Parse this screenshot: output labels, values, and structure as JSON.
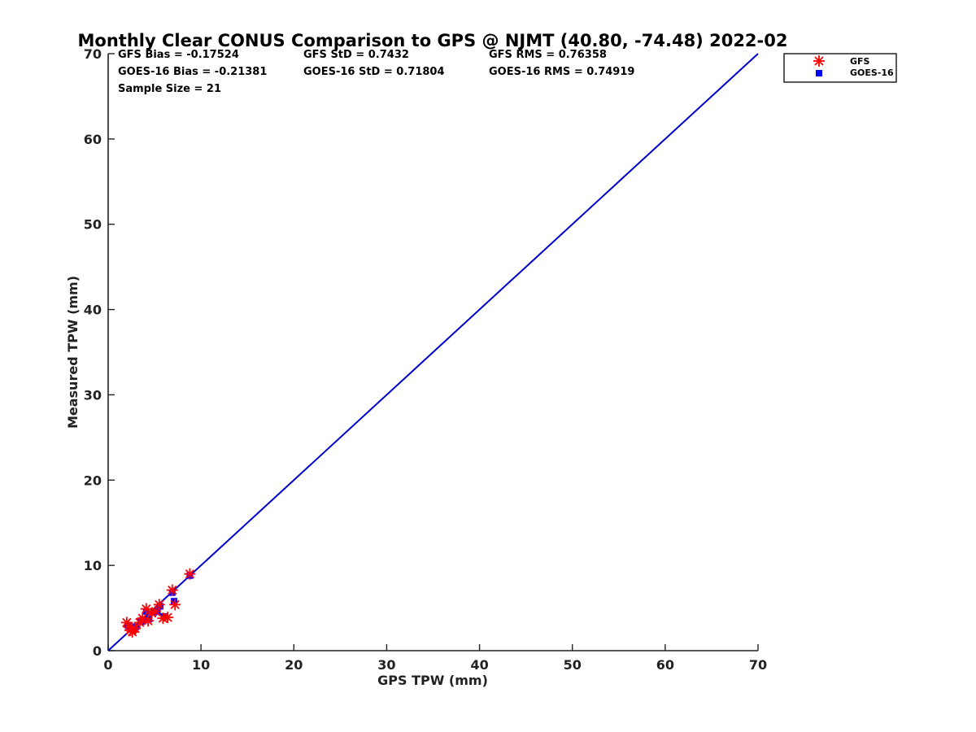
{
  "chart_data": {
    "type": "scatter",
    "title": "Monthly Clear CONUS Comparison to GPS @ NJMT (40.80, -74.48) 2022-02",
    "xlabel": "GPS TPW (mm)",
    "ylabel": "Measured TPW (mm)",
    "xlim": [
      0,
      70
    ],
    "ylim": [
      0,
      70
    ],
    "xticks": [
      "0",
      "10",
      "20",
      "30",
      "40",
      "50",
      "60",
      "70"
    ],
    "yticks": [
      "0",
      "10",
      "20",
      "30",
      "40",
      "50",
      "60",
      "70"
    ],
    "grid": false,
    "legend_position": "top-right, outside plot area",
    "reference_line": {
      "from": [
        0,
        0
      ],
      "to": [
        70,
        70
      ],
      "color": "#0000cc"
    },
    "stats": {
      "gfs_bias": "GFS Bias = -0.17524",
      "gfs_std": "GFS StD = 0.7432",
      "gfs_rms": "GFS RMS = 0.76358",
      "goes_bias": "GOES-16 Bias = -0.21381",
      "goes_std": "GOES-16 StD = 0.71804",
      "goes_rms": "GOES-16 RMS = 0.74919",
      "sample_size": "Sample Size = 21"
    },
    "series": [
      {
        "name": "GFS",
        "marker": "asterisk",
        "color": "#ff0000",
        "points": [
          [
            2.0,
            3.3
          ],
          [
            2.2,
            2.8
          ],
          [
            2.4,
            2.4
          ],
          [
            2.6,
            2.2
          ],
          [
            2.9,
            2.6
          ],
          [
            3.4,
            3.3
          ],
          [
            3.7,
            3.8
          ],
          [
            4.1,
            4.9
          ],
          [
            4.3,
            3.5
          ],
          [
            4.7,
            4.4
          ],
          [
            5.1,
            4.6
          ],
          [
            5.5,
            5.4
          ],
          [
            5.9,
            3.8
          ],
          [
            6.4,
            3.9
          ],
          [
            6.9,
            7.1
          ],
          [
            7.2,
            5.4
          ],
          [
            8.8,
            9.0
          ]
        ]
      },
      {
        "name": "GOES-16",
        "marker": "square",
        "color": "#0000ff",
        "points": [
          [
            2.1,
            3.0
          ],
          [
            2.3,
            2.7
          ],
          [
            2.5,
            2.5
          ],
          [
            2.7,
            2.4
          ],
          [
            3.0,
            2.8
          ],
          [
            3.5,
            3.4
          ],
          [
            3.8,
            3.5
          ],
          [
            4.1,
            4.6
          ],
          [
            4.4,
            3.7
          ],
          [
            4.9,
            4.5
          ],
          [
            5.3,
            4.6
          ],
          [
            5.6,
            5.2
          ],
          [
            6.0,
            4.0
          ],
          [
            6.9,
            6.8
          ],
          [
            7.1,
            5.8
          ],
          [
            8.8,
            8.8
          ]
        ]
      }
    ]
  }
}
